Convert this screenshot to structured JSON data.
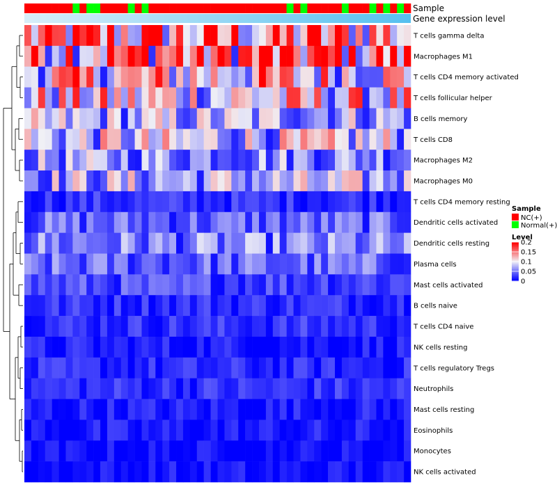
{
  "chart_data": {
    "type": "heatmap",
    "annotation_labels": [
      "Sample",
      "Gene expression level"
    ],
    "sample_groups": [
      "NC(+)",
      "NC(+)",
      "NC(+)",
      "NC(+)",
      "NC(+)",
      "NC(+)",
      "NC(+)",
      "Normal(+)",
      "NC(+)",
      "Normal(+)",
      "Normal(+)",
      "NC(+)",
      "NC(+)",
      "NC(+)",
      "NC(+)",
      "Normal(+)",
      "NC(+)",
      "Normal(+)",
      "NC(+)",
      "NC(+)",
      "NC(+)",
      "NC(+)",
      "NC(+)",
      "NC(+)",
      "NC(+)",
      "NC(+)",
      "NC(+)",
      "NC(+)",
      "NC(+)",
      "NC(+)",
      "NC(+)",
      "NC(+)",
      "NC(+)",
      "NC(+)",
      "NC(+)",
      "NC(+)",
      "NC(+)",
      "NC(+)",
      "Normal(+)",
      "NC(+)",
      "Normal(+)",
      "NC(+)",
      "NC(+)",
      "NC(+)",
      "NC(+)",
      "NC(+)",
      "Normal(+)",
      "NC(+)",
      "NC(+)",
      "NC(+)",
      "Normal(+)",
      "NC(+)",
      "Normal(+)",
      "NC(+)",
      "Normal(+)",
      "NC(+)"
    ],
    "rows": [
      "T cells gamma delta",
      "Macrophages M1",
      "T cells CD4 memory activated",
      "T cells follicular helper",
      "B cells memory",
      "T cells CD8",
      "Macrophages M2",
      "Macrophages M0",
      "T cells CD4 memory resting",
      "Dendritic cells activated",
      "Dendritic cells resting",
      "Plasma cells",
      "Mast cells activated",
      "B cells naive",
      "T cells CD4 naive",
      "NK cells resting",
      "T cells regulatory  Tregs",
      "Neutrophils",
      "Mast cells resting",
      "Eosinophils",
      "Monocytes",
      "NK cells activated"
    ],
    "row_means": [
      0.13,
      0.15,
      0.11,
      0.1,
      0.07,
      0.08,
      0.06,
      0.07,
      0.02,
      0.04,
      0.05,
      0.04,
      0.03,
      0.02,
      0.02,
      0.01,
      0.015,
      0.02,
      0.01,
      0.008,
      0.002,
      0.004
    ],
    "n_columns": 56,
    "color_scale": {
      "min": 0,
      "max": 0.2,
      "low": "#0000FF",
      "mid": "#F0F0F5",
      "high": "#FF0000"
    },
    "legend": {
      "sample_title": "Sample",
      "sample_entries": [
        {
          "label": "NC(+)",
          "color": "#FF0000"
        },
        {
          "label": "Normal(+)",
          "color": "#00FF00"
        }
      ],
      "level_title": "Level",
      "level_ticks": [
        "0.2",
        "0.15",
        "0.1",
        "0.05",
        "0"
      ],
      "level_values": [
        0.2,
        0.15,
        0.1,
        0.05,
        0
      ],
      "position": "right"
    }
  }
}
